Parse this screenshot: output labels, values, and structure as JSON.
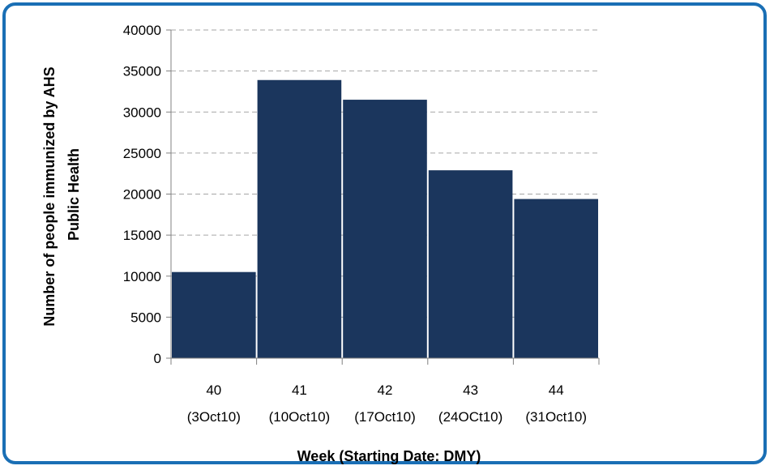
{
  "chart_data": {
    "type": "bar",
    "categories": [
      "40",
      "41",
      "42",
      "43",
      "44"
    ],
    "category_sublabels": [
      "(3Oct10)",
      "(10Oct10)",
      "(17Oct10)",
      "(24OCt10)",
      "(31Oct10)"
    ],
    "values": [
      10500,
      33900,
      31500,
      22900,
      19400
    ],
    "xlabel": "Week (Starting Date: DMY)",
    "ylabel_lines": [
      "Number of people immunized by AHS",
      "Public Health"
    ],
    "ylim": [
      0,
      40000
    ],
    "yticks": [
      "0",
      "5000",
      "10000",
      "15000",
      "20000",
      "25000",
      "30000",
      "35000",
      "40000"
    ],
    "grid": true,
    "bar_color": "#1b365d",
    "frame_color": "#1a6fb5"
  }
}
